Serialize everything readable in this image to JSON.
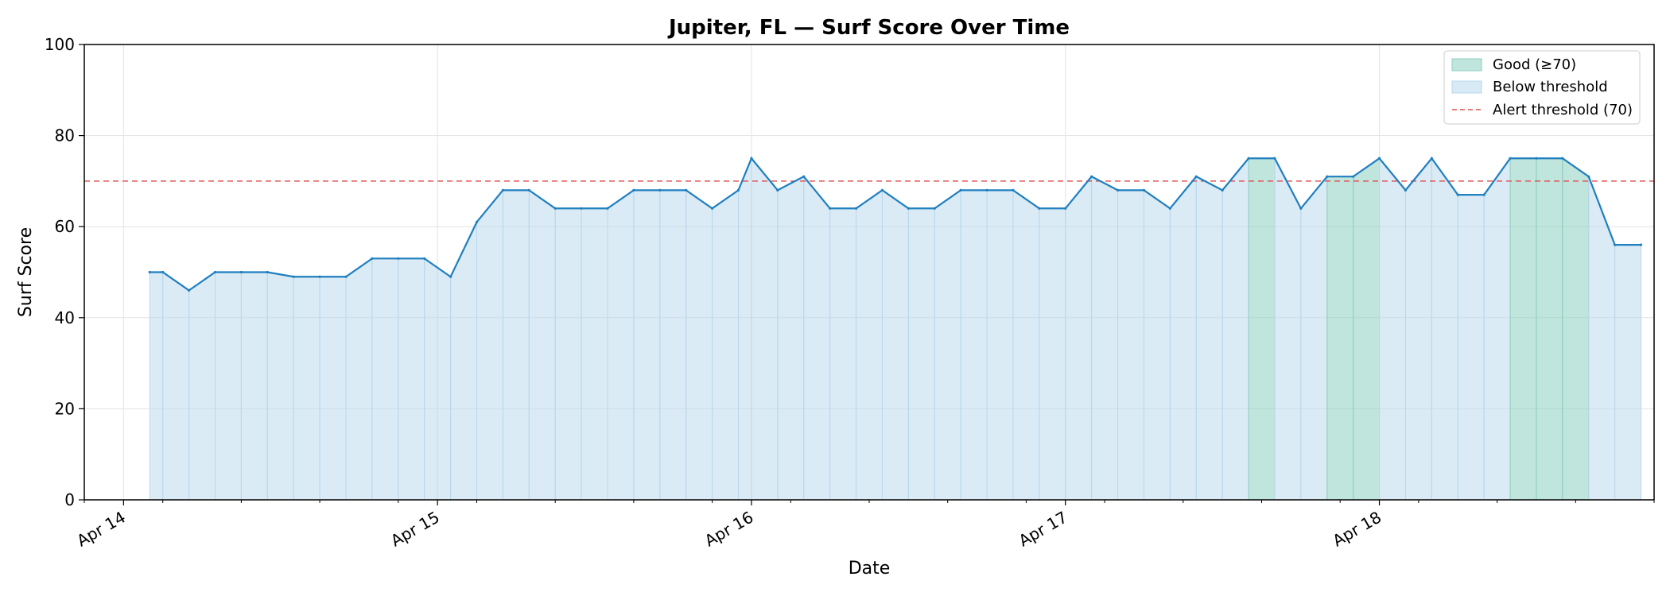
{
  "chart_data": {
    "type": "area",
    "title": "Jupiter, FL — Surf Score Over Time",
    "xlabel": "Date",
    "ylabel": "Surf Score",
    "ylim": [
      0,
      100
    ],
    "xlim": [
      "2024-04-13 21:00",
      "2024-04-18 21:00"
    ],
    "x_tick_labels": [
      "Apr 14",
      "Apr 15",
      "Apr 16",
      "Apr 17",
      "Apr 18"
    ],
    "y_ticks": [
      0,
      20,
      40,
      60,
      80,
      100
    ],
    "grid": true,
    "legend_position": "top-right",
    "threshold": 70,
    "colors": {
      "line": "#1f7fbf",
      "good_fill": "#8ccfc0",
      "below_fill": "#b8d8ec",
      "threshold_line": "#e05555"
    },
    "legend": [
      {
        "label": "Good (≥70)",
        "kind": "good"
      },
      {
        "label": "Below threshold",
        "kind": "below"
      },
      {
        "label": "Alert threshold (70)",
        "kind": "threshold"
      }
    ],
    "series": [
      {
        "x": [
          "2024-04-14 02:00",
          "2024-04-14 03:00",
          "2024-04-14 05:00",
          "2024-04-14 07:00",
          "2024-04-14 09:00",
          "2024-04-14 11:00",
          "2024-04-14 13:00",
          "2024-04-14 15:00",
          "2024-04-14 17:00",
          "2024-04-14 19:00",
          "2024-04-14 21:00",
          "2024-04-14 23:00",
          "2024-04-15 01:00",
          "2024-04-15 03:00",
          "2024-04-15 05:00",
          "2024-04-15 07:00",
          "2024-04-15 09:00",
          "2024-04-15 11:00",
          "2024-04-15 13:00",
          "2024-04-15 15:00",
          "2024-04-15 17:00",
          "2024-04-15 19:00",
          "2024-04-15 21:00",
          "2024-04-15 23:00",
          "2024-04-16 00:00",
          "2024-04-16 02:00",
          "2024-04-16 04:00",
          "2024-04-16 06:00",
          "2024-04-16 08:00",
          "2024-04-16 10:00",
          "2024-04-16 12:00",
          "2024-04-16 14:00",
          "2024-04-16 16:00",
          "2024-04-16 18:00",
          "2024-04-16 20:00",
          "2024-04-16 22:00",
          "2024-04-17 00:00",
          "2024-04-17 02:00",
          "2024-04-17 04:00",
          "2024-04-17 06:00",
          "2024-04-17 08:00",
          "2024-04-17 10:00",
          "2024-04-17 12:00",
          "2024-04-17 14:00",
          "2024-04-17 16:00",
          "2024-04-17 18:00",
          "2024-04-17 20:00",
          "2024-04-17 22:00",
          "2024-04-18 00:00",
          "2024-04-18 02:00",
          "2024-04-18 04:00",
          "2024-04-18 06:00",
          "2024-04-18 08:00",
          "2024-04-18 10:00",
          "2024-04-18 12:00",
          "2024-04-18 14:00",
          "2024-04-18 16:00",
          "2024-04-18 18:00",
          "2024-04-18 20:00"
        ],
        "y": [
          50,
          50,
          46,
          50,
          50,
          50,
          49,
          49,
          49,
          53,
          53,
          53,
          49,
          61,
          68,
          68,
          64,
          64,
          64,
          68,
          68,
          68,
          64,
          68,
          75,
          68,
          71,
          64,
          64,
          68,
          64,
          64,
          68,
          68,
          68,
          64,
          64,
          71,
          68,
          68,
          64,
          71,
          68,
          75,
          75,
          64,
          71,
          71,
          75,
          68,
          75,
          67,
          67,
          75,
          75,
          75,
          71,
          56,
          56
        ]
      }
    ]
  }
}
